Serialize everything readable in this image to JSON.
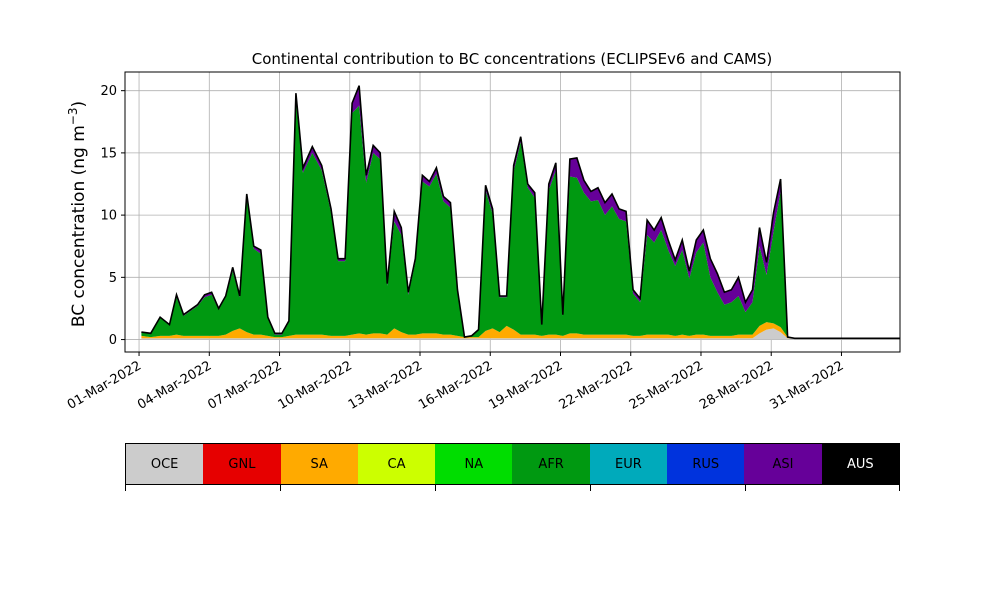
{
  "chart_data": {
    "type": "area",
    "stacked": true,
    "title": "Continental contribution to BC concentrations (ECLIPSEv6 and CAMS)",
    "ylabel_text": "BC concentration (ng m",
    "ylabel_exp": "−3",
    "ylabel_close": ")",
    "xlabel": "",
    "x_start": "01-Mar-2022",
    "x_end": "01-Apr-2022",
    "xlim_days": [
      -0.6,
      32.5
    ],
    "ylim": [
      -1,
      21.5
    ],
    "yticks": [
      0,
      5,
      10,
      15,
      20
    ],
    "xtick_labels": [
      "01-Mar-2022",
      "04-Mar-2022",
      "07-Mar-2022",
      "10-Mar-2022",
      "13-Mar-2022",
      "16-Mar-2022",
      "19-Mar-2022",
      "22-Mar-2022",
      "25-Mar-2022",
      "28-Mar-2022",
      "31-Mar-2022"
    ],
    "grid": true,
    "total_line_color": "#000000",
    "series": [
      {
        "name": "OCE",
        "color": "#cccccc"
      },
      {
        "name": "GNL",
        "color": "#e60000"
      },
      {
        "name": "SA",
        "color": "#ffaa00"
      },
      {
        "name": "CA",
        "color": "#ccff00"
      },
      {
        "name": "NA",
        "color": "#00dd00"
      },
      {
        "name": "AFR",
        "color": "#009911"
      },
      {
        "name": "EUR",
        "color": "#00aabb"
      },
      {
        "name": "RUS",
        "color": "#0033dd"
      },
      {
        "name": "ASI",
        "color": "#660099"
      },
      {
        "name": "AUS",
        "color": "#000000"
      }
    ],
    "time_days": [
      0.1,
      0.5,
      0.9,
      1.3,
      1.6,
      1.9,
      2.2,
      2.5,
      2.8,
      3.1,
      3.4,
      3.7,
      4.0,
      4.3,
      4.6,
      4.9,
      5.2,
      5.5,
      5.8,
      6.1,
      6.4,
      6.7,
      7.0,
      7.4,
      7.8,
      8.2,
      8.5,
      8.8,
      9.1,
      9.4,
      9.7,
      10.0,
      10.3,
      10.6,
      10.9,
      11.2,
      11.5,
      11.8,
      12.1,
      12.4,
      12.7,
      13.0,
      13.3,
      13.6,
      13.9,
      14.2,
      14.5,
      14.8,
      15.1,
      15.4,
      15.7,
      16.0,
      16.3,
      16.6,
      16.9,
      17.2,
      17.5,
      17.8,
      18.1,
      18.4,
      18.7,
      19.0,
      19.3,
      19.6,
      19.9,
      20.2,
      20.5,
      20.8,
      21.1,
      21.4,
      21.7,
      22.0,
      22.3,
      22.6,
      22.9,
      23.2,
      23.5,
      23.8,
      24.1,
      24.4,
      24.7,
      25.0,
      25.3,
      25.6,
      25.9,
      26.2,
      26.5,
      26.8,
      27.1,
      27.4,
      27.7,
      28.0,
      28.3,
      28.6,
      28.9,
      29.2,
      29.5,
      29.8,
      30.1,
      30.4,
      30.7,
      31.0,
      31.3,
      31.6,
      31.9,
      32.2,
      32.5
    ],
    "total": [
      0.6,
      0.5,
      1.8,
      1.2,
      3.6,
      2.0,
      2.4,
      2.8,
      3.6,
      3.8,
      2.5,
      3.5,
      5.8,
      3.5,
      11.7,
      7.5,
      7.2,
      1.8,
      0.5,
      0.5,
      1.5,
      19.8,
      13.8,
      15.5,
      14.0,
      10.5,
      6.5,
      6.5,
      19.0,
      20.4,
      13.2,
      15.6,
      15.0,
      4.5,
      10.3,
      9.0,
      3.8,
      6.5,
      13.2,
      12.7,
      13.8,
      11.5,
      11.0,
      4.0,
      0.2,
      0.3,
      0.8,
      12.4,
      10.5,
      3.5,
      3.5,
      14.0,
      16.3,
      12.5,
      11.8,
      1.2,
      12.5,
      14.2,
      2.0,
      14.5,
      14.6,
      12.8,
      11.9,
      12.2,
      11.0,
      11.7,
      10.5,
      10.3,
      4.0,
      3.3,
      9.6,
      8.8,
      9.8,
      8.0,
      6.4,
      8.0,
      5.5,
      8.0,
      8.8,
      6.5,
      5.3,
      3.8,
      4.0,
      5.0,
      3.0,
      4.0,
      9.0,
      6.2,
      10.2,
      12.9,
      0.2,
      0.1,
      0.1,
      0.1,
      0.1,
      0.1,
      0.1,
      0.1,
      0.1,
      0.1,
      0.1,
      0.1,
      0.1,
      0.1,
      0.1,
      0.1,
      0.1
    ],
    "asi": [
      0.0,
      0.0,
      0.0,
      0.0,
      0.2,
      0.1,
      0.1,
      0.1,
      0.2,
      0.2,
      0.1,
      0.1,
      0.3,
      0.1,
      0.3,
      0.2,
      0.3,
      0.1,
      0.1,
      0.1,
      0.1,
      0.5,
      0.4,
      0.5,
      0.4,
      0.3,
      0.2,
      0.2,
      0.8,
      1.6,
      0.6,
      0.6,
      0.5,
      0.2,
      0.8,
      0.6,
      0.2,
      0.3,
      0.5,
      0.4,
      0.5,
      0.4,
      0.4,
      0.1,
      0.0,
      0.0,
      0.0,
      0.4,
      0.4,
      0.1,
      0.1,
      0.5,
      0.4,
      0.3,
      0.4,
      0.0,
      0.5,
      0.6,
      0.1,
      1.4,
      1.6,
      1.0,
      0.8,
      1.0,
      1.0,
      1.0,
      0.8,
      0.8,
      0.3,
      0.3,
      1.2,
      1.0,
      1.0,
      0.8,
      0.5,
      0.8,
      0.6,
      1.0,
      1.0,
      1.5,
      1.5,
      1.0,
      1.0,
      1.5,
      0.8,
      1.0,
      1.5,
      1.0,
      1.5,
      1.0,
      0.0,
      0.0,
      0.0,
      0.0,
      0.0,
      0.0,
      0.0,
      0.0,
      0.0,
      0.0,
      0.0,
      0.0,
      0.0,
      0.0,
      0.0,
      0.0,
      0.0
    ],
    "sa": [
      0.2,
      0.1,
      0.2,
      0.2,
      0.3,
      0.2,
      0.2,
      0.2,
      0.2,
      0.2,
      0.2,
      0.3,
      0.6,
      0.8,
      0.5,
      0.3,
      0.3,
      0.2,
      0.1,
      0.1,
      0.2,
      0.3,
      0.3,
      0.3,
      0.3,
      0.2,
      0.2,
      0.2,
      0.3,
      0.4,
      0.3,
      0.4,
      0.4,
      0.3,
      0.8,
      0.5,
      0.3,
      0.3,
      0.4,
      0.4,
      0.4,
      0.3,
      0.3,
      0.2,
      0.1,
      0.1,
      0.1,
      0.6,
      0.8,
      0.5,
      1.0,
      0.7,
      0.3,
      0.3,
      0.3,
      0.2,
      0.3,
      0.3,
      0.2,
      0.4,
      0.4,
      0.3,
      0.3,
      0.3,
      0.3,
      0.3,
      0.3,
      0.3,
      0.2,
      0.2,
      0.3,
      0.3,
      0.3,
      0.3,
      0.2,
      0.3,
      0.2,
      0.3,
      0.3,
      0.2,
      0.2,
      0.2,
      0.2,
      0.3,
      0.3,
      0.3,
      0.6,
      0.6,
      0.4,
      0.4,
      0.1,
      0.1,
      0.1,
      0.1,
      0.1,
      0.1,
      0.1,
      0.1,
      0.1,
      0.1,
      0.1,
      0.1,
      0.1,
      0.1,
      0.1,
      0.1,
      0.1
    ],
    "oce": [
      0.1,
      0.1,
      0.1,
      0.1,
      0.1,
      0.1,
      0.1,
      0.1,
      0.1,
      0.1,
      0.1,
      0.1,
      0.1,
      0.1,
      0.1,
      0.1,
      0.1,
      0.1,
      0.1,
      0.1,
      0.1,
      0.1,
      0.1,
      0.1,
      0.1,
      0.1,
      0.1,
      0.1,
      0.1,
      0.1,
      0.1,
      0.1,
      0.1,
      0.1,
      0.1,
      0.1,
      0.1,
      0.1,
      0.1,
      0.1,
      0.1,
      0.1,
      0.1,
      0.1,
      0.1,
      0.1,
      0.1,
      0.1,
      0.1,
      0.1,
      0.1,
      0.1,
      0.1,
      0.1,
      0.1,
      0.1,
      0.1,
      0.1,
      0.1,
      0.1,
      0.1,
      0.1,
      0.1,
      0.1,
      0.1,
      0.1,
      0.1,
      0.1,
      0.1,
      0.1,
      0.1,
      0.1,
      0.1,
      0.1,
      0.1,
      0.1,
      0.1,
      0.1,
      0.1,
      0.1,
      0.1,
      0.1,
      0.1,
      0.1,
      0.1,
      0.1,
      0.5,
      0.8,
      0.9,
      0.6,
      0.1,
      0.1,
      0.1,
      0.1,
      0.1,
      0.1,
      0.1,
      0.1,
      0.1,
      0.1,
      0.1,
      0.1,
      0.1,
      0.1,
      0.1,
      0.1,
      0.1
    ]
  }
}
